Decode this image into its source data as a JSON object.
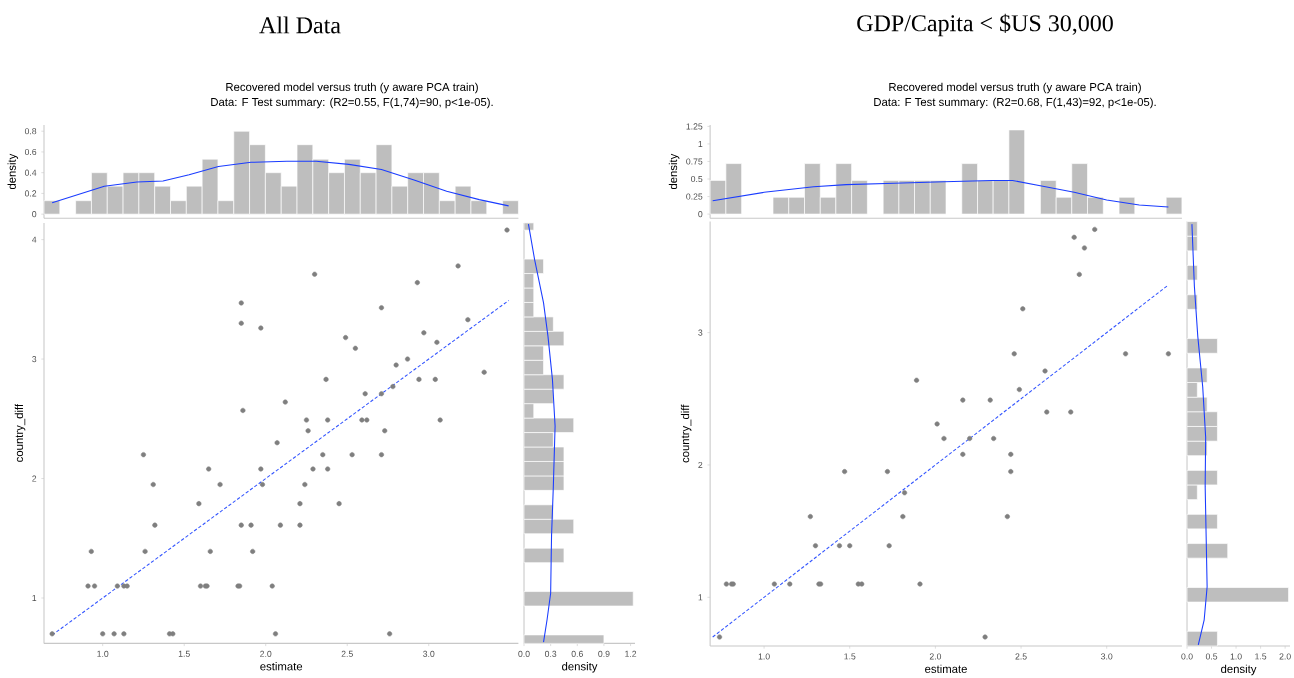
{
  "chart_data": [
    {
      "type": "histogram",
      "title": "All Data",
      "subtitle": "Recovered model versus truth (y aware PCA train)",
      "annotations": [
        "Data: F Test summary: (R2=0.55, F(1,74)=90, p<1e-05)."
      ],
      "ylabel": "density",
      "tick_labels": "y",
      "color": "#bebebe",
      "bins": [
        0.64,
        0.737,
        0.834,
        0.931,
        1.028,
        1.125,
        1.222,
        1.319,
        1.416,
        1.513,
        1.61,
        1.707,
        1.804,
        1.901,
        1.998,
        2.095,
        2.192,
        2.289,
        2.386,
        2.483,
        2.58,
        2.677,
        2.774,
        2.871,
        2.968,
        3.065,
        3.162,
        3.259,
        3.356,
        3.453,
        3.55
      ],
      "values": [
        0.13,
        0,
        0.13,
        0.4,
        0.27,
        0.4,
        0.4,
        0.27,
        0.13,
        0.27,
        0.53,
        0.13,
        0.8,
        0.67,
        0.4,
        0.27,
        0.67,
        0.53,
        0.4,
        0.53,
        0.4,
        0.67,
        0.27,
        0.4,
        0.4,
        0.13,
        0.27,
        0.13,
        0,
        0.13
      ],
      "xlim": [
        0.64,
        3.55
      ],
      "ylim": [
        -0.04,
        0.86
      ],
      "yticks": [
        0,
        0.2,
        0.4,
        0.6,
        0.8
      ],
      "series": [
        {
          "type": "line",
          "color": "#1a3cff",
          "x": [
            0.69,
            1.01,
            1.21,
            1.37,
            1.53,
            1.71,
            1.91,
            2.13,
            2.31,
            2.51,
            2.71,
            2.91,
            3.11,
            3.31,
            3.49
          ],
          "values": [
            0.11,
            0.27,
            0.31,
            0.32,
            0.38,
            0.46,
            0.5,
            0.51,
            0.51,
            0.48,
            0.43,
            0.33,
            0.22,
            0.14,
            0.08
          ]
        }
      ]
    },
    {
      "type": "scatter",
      "xlabel": "estimate",
      "ylabel": "country_diff",
      "xlim": [
        0.64,
        3.55
      ],
      "ylim": [
        0.62,
        4.14
      ],
      "xticks": [
        {
          "value": 1.0,
          "label": "1.0"
        },
        {
          "value": 1.5,
          "label": "1.5"
        },
        {
          "value": 2.0,
          "label": "2.0"
        },
        {
          "value": 2.5,
          "label": "2.5"
        },
        {
          "value": 3.0,
          "label": "3.0"
        }
      ],
      "yticks": [
        1,
        2,
        3,
        4
      ],
      "series": [
        {
          "type": "scatter",
          "marker": "circle",
          "color": "#7f7f7f",
          "x": [
            1.85,
            2.3,
            3.18,
            2.93,
            2.71,
            1.85,
            1.97,
            3.24,
            2.49,
            2.55,
            2.97,
            3.05,
            2.87,
            2.8,
            2.37,
            2.94,
            3.04,
            3.34,
            2.78,
            2.61,
            2.71,
            2.12,
            1.86,
            2.25,
            2.38,
            2.59,
            2.62,
            3.07,
            2.26,
            2.73,
            2.07,
            1.25,
            2.35,
            2.53,
            2.71,
            1.65,
            1.97,
            2.29,
            2.38,
            1.31,
            1.72,
            1.98,
            2.24,
            1.59,
            2.21,
            2.45,
            1.32,
            1.85,
            1.91,
            2.09,
            2.21,
            0.93,
            1.26,
            1.66,
            1.92,
            0.91,
            0.95,
            1.09,
            1.13,
            1.15,
            1.6,
            1.63,
            1.64,
            1.83,
            1.84,
            2.04,
            0.69,
            1.0,
            1.07,
            1.13,
            1.41,
            1.43,
            2.06,
            2.76,
            3.48
          ],
          "values": [
            3.47,
            3.71,
            3.78,
            3.64,
            3.43,
            3.3,
            3.26,
            3.33,
            3.18,
            3.09,
            3.22,
            3.14,
            3.0,
            2.95,
            2.83,
            2.83,
            2.83,
            2.89,
            2.77,
            2.71,
            2.71,
            2.64,
            2.57,
            2.49,
            2.49,
            2.49,
            2.49,
            2.49,
            2.4,
            2.4,
            2.3,
            2.2,
            2.2,
            2.2,
            2.2,
            2.08,
            2.08,
            2.08,
            2.08,
            1.95,
            1.95,
            1.95,
            1.95,
            1.79,
            1.79,
            1.79,
            1.61,
            1.61,
            1.61,
            1.61,
            1.61,
            1.39,
            1.39,
            1.39,
            1.39,
            1.1,
            1.1,
            1.1,
            1.1,
            1.1,
            1.1,
            1.1,
            1.1,
            1.1,
            1.1,
            1.1,
            0.7,
            0.7,
            0.7,
            0.7,
            0.7,
            0.7,
            0.7,
            0.7,
            4.08
          ]
        },
        {
          "type": "line",
          "line_style": "dashed",
          "color": "#3355ff",
          "x": [
            0.69,
            3.49
          ],
          "values": [
            0.69,
            3.49
          ]
        }
      ]
    },
    {
      "type": "histogram",
      "orientation": "horizontal",
      "xlabel": "density",
      "tick_labels": "x",
      "color": "#bebebe",
      "bins": [
        0.62,
        0.691,
        0.933,
        1.054,
        1.296,
        1.417,
        1.538,
        1.659,
        1.78,
        1.901,
        2.022,
        2.143,
        2.264,
        2.385,
        2.506,
        2.627,
        2.748,
        2.869,
        2.99,
        3.111,
        3.232,
        3.353,
        3.474,
        3.595,
        3.716,
        3.837,
        4.079,
        4.14
      ],
      "values": [
        0.9,
        0,
        1.23,
        0,
        0.45,
        0,
        0.56,
        0.33,
        0,
        0.45,
        0.45,
        0.45,
        0.33,
        0.56,
        0.11,
        0.33,
        0.45,
        0.22,
        0.22,
        0.45,
        0.33,
        0.11,
        0.11,
        0.11,
        0.22,
        0,
        0.11
      ],
      "xlim": [
        0,
        1.25
      ],
      "ylim": [
        0.62,
        4.14
      ],
      "xticks": [
        {
          "value": 0,
          "label": "0.0"
        },
        {
          "value": 0.3,
          "label": "0.3"
        },
        {
          "value": 0.6,
          "label": "0.6"
        },
        {
          "value": 0.9,
          "label": "0.9"
        },
        {
          "value": 1.2,
          "label": "1.2"
        }
      ],
      "series": [
        {
          "type": "line",
          "color": "#1a3cff",
          "x": [
            4.13,
            3.83,
            3.47,
            3.19,
            2.83,
            2.44,
            1.93,
            1.52,
            1.04,
            0.82,
            0.63
          ],
          "values": [
            0.05,
            0.12,
            0.22,
            0.27,
            0.32,
            0.35,
            0.33,
            0.31,
            0.3,
            0.26,
            0.22
          ]
        }
      ]
    },
    {
      "type": "histogram",
      "title": "GDP/Capita < $US 30,000",
      "subtitle": "Recovered model versus truth (y aware PCA train)",
      "annotations": [
        "Data: F Test summary: (R2=0.68, F(1,43)=92, p<1e-05)."
      ],
      "ylabel": "density",
      "tick_labels": "y",
      "color": "#bebebe",
      "bins": [
        0.685,
        0.777,
        0.869,
        0.96,
        1.052,
        1.144,
        1.236,
        1.328,
        1.419,
        1.511,
        1.603,
        1.695,
        1.787,
        1.878,
        1.97,
        2.062,
        2.154,
        2.246,
        2.337,
        2.429,
        2.521,
        2.613,
        2.705,
        2.796,
        2.888,
        2.98,
        3.072,
        3.164,
        3.255,
        3.347,
        3.439
      ],
      "values": [
        0.48,
        0.72,
        0,
        0,
        0.24,
        0.24,
        0.72,
        0.24,
        0.72,
        0.48,
        0,
        0.48,
        0.48,
        0.48,
        0.48,
        0,
        0.72,
        0.48,
        0.48,
        1.2,
        0,
        0.48,
        0.24,
        0.72,
        0.24,
        0,
        0.24,
        0,
        0,
        0.24
      ],
      "xlim": [
        0.685,
        3.439
      ],
      "ylim": [
        -0.06,
        1.27
      ],
      "yticks": [
        0,
        0.25,
        0.5,
        0.75,
        1,
        1.25
      ],
      "series": [
        {
          "type": "line",
          "color": "#1a3cff",
          "x": [
            0.7,
            1.0,
            1.29,
            1.48,
            1.76,
            2.05,
            2.33,
            2.45,
            2.62,
            2.81,
            3.0,
            3.19,
            3.36
          ],
          "values": [
            0.19,
            0.31,
            0.39,
            0.42,
            0.44,
            0.46,
            0.48,
            0.48,
            0.4,
            0.31,
            0.2,
            0.13,
            0.1
          ]
        }
      ]
    },
    {
      "type": "scatter",
      "xlabel": "estimate",
      "ylabel": "country_diff",
      "xlim": [
        0.685,
        3.439
      ],
      "ylim": [
        0.632,
        3.839
      ],
      "xticks": [
        {
          "value": 1.0,
          "label": "1.0"
        },
        {
          "value": 1.5,
          "label": "1.5"
        },
        {
          "value": 2.0,
          "label": "2.0"
        },
        {
          "value": 2.5,
          "label": "2.5"
        },
        {
          "value": 3.0,
          "label": "3.0"
        }
      ],
      "yticks": [
        1,
        2,
        3
      ],
      "series": [
        {
          "type": "scatter",
          "marker": "circle",
          "color": "#7f7f7f",
          "x": [
            2.93,
            2.81,
            2.87,
            2.84,
            2.51,
            2.46,
            3.11,
            3.36,
            1.89,
            2.64,
            2.49,
            2.16,
            2.32,
            2.65,
            2.79,
            2.01,
            2.05,
            2.2,
            2.34,
            2.16,
            2.44,
            1.47,
            1.72,
            2.44,
            1.82,
            1.27,
            1.81,
            2.42,
            1.3,
            1.44,
            1.5,
            1.73,
            0.78,
            0.81,
            0.82,
            1.06,
            1.15,
            1.32,
            1.33,
            1.55,
            1.57,
            1.91,
            0.74,
            2.29
          ],
          "values": [
            3.78,
            3.72,
            3.64,
            3.44,
            3.18,
            2.84,
            2.84,
            2.84,
            2.64,
            2.71,
            2.57,
            2.49,
            2.49,
            2.4,
            2.4,
            2.31,
            2.2,
            2.2,
            2.2,
            2.08,
            2.08,
            1.95,
            1.95,
            1.95,
            1.79,
            1.61,
            1.61,
            1.61,
            1.39,
            1.39,
            1.39,
            1.39,
            1.1,
            1.1,
            1.1,
            1.1,
            1.1,
            1.1,
            1.1,
            1.1,
            1.1,
            1.1,
            0.7,
            0.7
          ]
        },
        {
          "type": "line",
          "line_style": "dashed",
          "color": "#3355ff",
          "x": [
            0.7,
            3.36
          ],
          "values": [
            0.7,
            3.36
          ]
        }
      ]
    },
    {
      "type": "histogram",
      "orientation": "horizontal",
      "xlabel": "density",
      "tick_labels": "x",
      "color": "#bebebe",
      "bins": [
        0.632,
        0.743,
        0.853,
        0.964,
        1.074,
        1.185,
        1.296,
        1.406,
        1.517,
        1.627,
        1.738,
        1.849,
        1.959,
        2.07,
        2.18,
        2.291,
        2.402,
        2.512,
        2.623,
        2.733,
        2.844,
        2.955,
        3.065,
        3.176,
        3.286,
        3.397,
        3.508,
        3.618,
        3.729,
        3.839
      ],
      "values": [
        0.62,
        0,
        0,
        2.07,
        0,
        0,
        0.83,
        0,
        0.62,
        0,
        0.21,
        0.62,
        0,
        0.41,
        0.62,
        0.62,
        0.41,
        0.21,
        0.41,
        0,
        0.62,
        0,
        0,
        0.21,
        0,
        0.21,
        0,
        0.21,
        0.21
      ],
      "xlim": [
        0,
        2.1
      ],
      "ylim": [
        0.632,
        3.839
      ],
      "xticks": [
        {
          "value": 0,
          "label": "0.0"
        },
        {
          "value": 0.5,
          "label": "0.5"
        },
        {
          "value": 1.0,
          "label": "1.0"
        },
        {
          "value": 1.5,
          "label": "1.5"
        },
        {
          "value": 2.0,
          "label": "2.0"
        }
      ],
      "series": [
        {
          "type": "line",
          "color": "#1a3cff",
          "x": [
            3.82,
            3.35,
            2.97,
            2.59,
            2.21,
            1.84,
            1.46,
            1.08,
            0.83,
            0.64
          ],
          "values": [
            0.1,
            0.15,
            0.22,
            0.32,
            0.38,
            0.37,
            0.39,
            0.41,
            0.35,
            0.23
          ]
        }
      ]
    }
  ]
}
